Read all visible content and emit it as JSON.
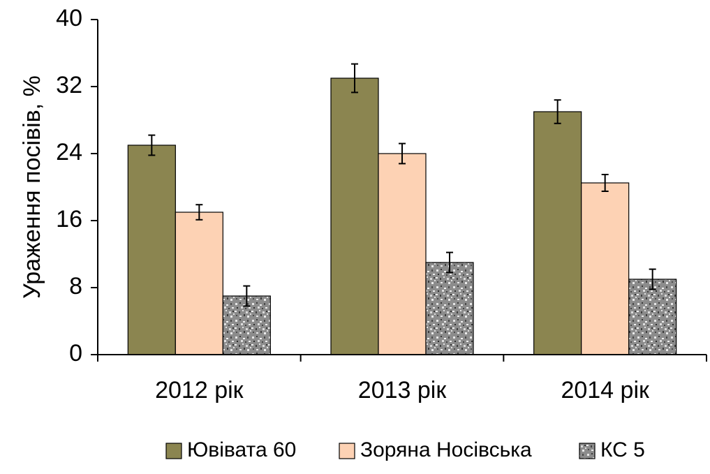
{
  "chart_data": {
    "type": "bar",
    "title": "",
    "xlabel": "",
    "ylabel": "Ураження посівів, %",
    "ylim": [
      0,
      40
    ],
    "yticks": [
      0,
      8,
      16,
      24,
      32,
      40
    ],
    "grid": false,
    "legend_position": "bottom",
    "categories": [
      "2012 рік",
      "2013 рік",
      "2014 рік"
    ],
    "series": [
      {
        "name": "Ювівата 60",
        "color": "#8b8550",
        "pattern": "solid",
        "values": [
          25,
          33,
          29
        ],
        "errors": [
          1.2,
          1.7,
          1.4
        ]
      },
      {
        "name": "Зоряна Носівська",
        "color": "#fdd2b4",
        "pattern": "solid",
        "values": [
          17,
          24,
          20.5
        ],
        "errors": [
          0.9,
          1.2,
          1.0
        ]
      },
      {
        "name": "КС 5",
        "color": "#8c8c8c",
        "pattern": "speckled-gray",
        "values": [
          7,
          11,
          9
        ],
        "errors": [
          1.2,
          1.2,
          1.2
        ]
      }
    ]
  }
}
